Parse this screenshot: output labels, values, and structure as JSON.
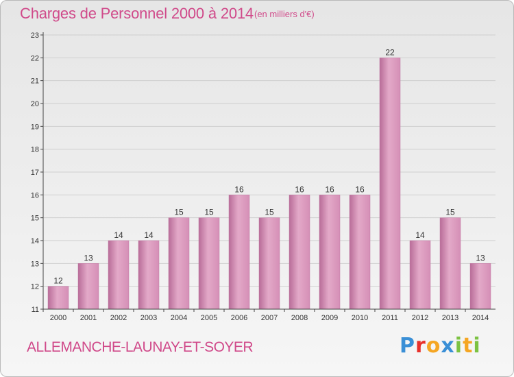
{
  "header": {
    "title": "Charges de Personnel 2000 à 2014",
    "subtitle": "(en milliers d'€)"
  },
  "footer": {
    "commune": "ALLEMANCHE-LAUNAY-ET-SOYER",
    "logo_letters": [
      "P",
      "r",
      "o",
      "x",
      "i",
      "t",
      "i"
    ],
    "logo_colors": [
      "#3a8fd6",
      "#e8302a",
      "#f5a623",
      "#3a8fd6",
      "#7cc242",
      "#f5a623",
      "#7cc242"
    ]
  },
  "colors": {
    "bar": "#d58fb6",
    "bar_light": "#e3a9c8",
    "bar_dark": "#b86c98",
    "axis": "#444444",
    "grid": "#cfcfcf"
  },
  "chart_data": {
    "type": "bar",
    "categories": [
      "2000",
      "2001",
      "2002",
      "2003",
      "2004",
      "2005",
      "2006",
      "2007",
      "2008",
      "2009",
      "2010",
      "2011",
      "2012",
      "2013",
      "2014"
    ],
    "values": [
      12,
      13,
      14,
      14,
      15,
      15,
      16,
      15,
      16,
      16,
      16,
      22,
      14,
      15,
      13
    ],
    "title": "Charges de Personnel 2000 à 2014",
    "subtitle": "(en milliers d'€)",
    "xlabel": "",
    "ylabel": "",
    "ylim": [
      11,
      23
    ],
    "yticks": [
      11,
      12,
      13,
      14,
      15,
      16,
      17,
      18,
      19,
      20,
      21,
      22,
      23
    ],
    "grid": true,
    "data_labels": true
  }
}
